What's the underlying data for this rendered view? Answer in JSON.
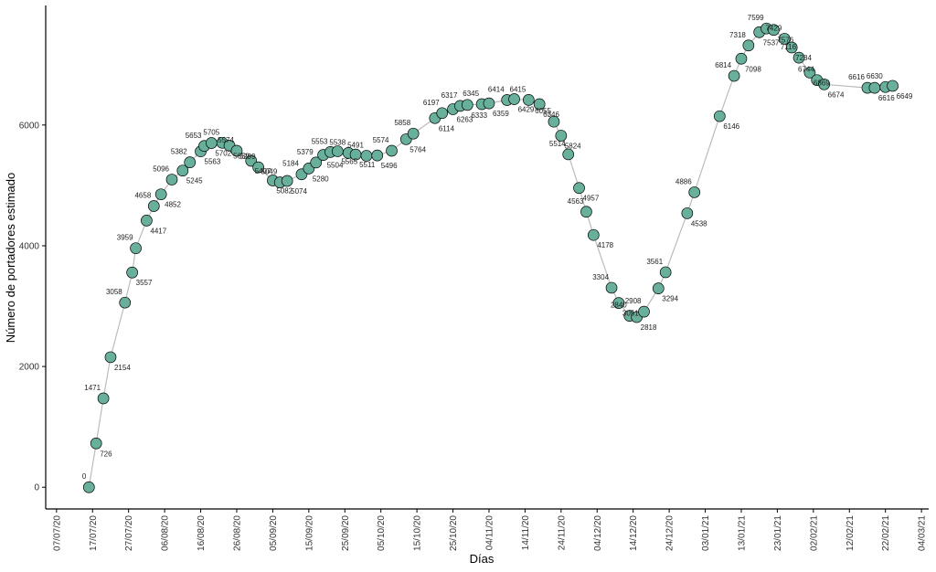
{
  "chart_data": {
    "type": "scatter",
    "xlabel": "Días",
    "ylabel": "Número de portadores estimado",
    "x": [
      "2020-07-16",
      "2020-07-18",
      "2020-07-20",
      "2020-07-22",
      "2020-07-26",
      "2020-07-28",
      "2020-07-29",
      "2020-08-01",
      "2020-08-03",
      "2020-08-05",
      "2020-08-08",
      "2020-08-11",
      "2020-08-13",
      "2020-08-16",
      "2020-08-17",
      "2020-08-19",
      "2020-08-22",
      "2020-08-24",
      "2020-08-26",
      "2020-08-30",
      "2020-09-01",
      "2020-09-05",
      "2020-09-07",
      "2020-09-09",
      "2020-09-13",
      "2020-09-15",
      "2020-09-17",
      "2020-09-19",
      "2020-09-21",
      "2020-09-23",
      "2020-09-26",
      "2020-09-28",
      "2020-10-01",
      "2020-10-04",
      "2020-10-08",
      "2020-10-12",
      "2020-10-14",
      "2020-10-20",
      "2020-10-22",
      "2020-10-25",
      "2020-10-27",
      "2020-10-29",
      "2020-11-02",
      "2020-11-04",
      "2020-11-09",
      "2020-11-11",
      "2020-11-15",
      "2020-11-18",
      "2020-11-22",
      "2020-11-24",
      "2020-11-26",
      "2020-11-29",
      "2020-12-01",
      "2020-12-03",
      "2020-12-08",
      "2020-12-10",
      "2020-12-13",
      "2020-12-15",
      "2020-12-17",
      "2020-12-21",
      "2020-12-23",
      "2020-12-29",
      "2020-12-31",
      "2021-01-07",
      "2021-01-11",
      "2021-01-13",
      "2021-01-15",
      "2021-01-18",
      "2021-01-20",
      "2021-01-22",
      "2021-01-25",
      "2021-01-27",
      "2021-01-29",
      "2021-02-01",
      "2021-02-03",
      "2021-02-05",
      "2021-02-17",
      "2021-02-19",
      "2021-02-22",
      "2021-02-24"
    ],
    "values": [
      0,
      726,
      1471,
      2154,
      3058,
      3557,
      3959,
      4417,
      4658,
      4852,
      5096,
      5245,
      5382,
      5563,
      5653,
      5702,
      5705,
      5659,
      5574,
      5407,
      5299,
      5082,
      5049,
      5074,
      5184,
      5280,
      5379,
      5504,
      5553,
      5565,
      5538,
      5511,
      5491,
      5496,
      5574,
      5764,
      5858,
      6114,
      6197,
      6263,
      6317,
      6333,
      6345,
      6359,
      6414,
      6429,
      6415,
      6346,
      6055,
      5824,
      5514,
      4957,
      4563,
      4178,
      3304,
      3051,
      2840,
      2818,
      2908,
      3294,
      3561,
      4538,
      4886,
      6146,
      6814,
      7098,
      7318,
      7537,
      7599,
      7576,
      7429,
      7284,
      7116,
      6869,
      6744,
      6674,
      6616,
      6616,
      6630,
      6649
    ],
    "color": "#69b09c",
    "line_color": "#bbbbbb",
    "xlim": [
      "2020-07-04",
      "2021-03-06"
    ],
    "xticks": [
      {
        "value": "2020-07-07",
        "label": "07/07/20"
      },
      {
        "value": "2020-07-17",
        "label": "17/07/20"
      },
      {
        "value": "2020-07-27",
        "label": "27/07/20"
      },
      {
        "value": "2020-08-06",
        "label": "06/08/20"
      },
      {
        "value": "2020-08-16",
        "label": "16/08/20"
      },
      {
        "value": "2020-08-26",
        "label": "26/08/20"
      },
      {
        "value": "2020-09-05",
        "label": "05/09/20"
      },
      {
        "value": "2020-09-15",
        "label": "15/09/20"
      },
      {
        "value": "2020-09-25",
        "label": "25/09/20"
      },
      {
        "value": "2020-10-05",
        "label": "05/10/20"
      },
      {
        "value": "2020-10-15",
        "label": "15/10/20"
      },
      {
        "value": "2020-10-25",
        "label": "25/10/20"
      },
      {
        "value": "2020-11-04",
        "label": "04/11/20"
      },
      {
        "value": "2020-11-14",
        "label": "14/11/20"
      },
      {
        "value": "2020-11-24",
        "label": "24/11/20"
      },
      {
        "value": "2020-12-04",
        "label": "04/12/20"
      },
      {
        "value": "2020-12-14",
        "label": "14/12/20"
      },
      {
        "value": "2020-12-24",
        "label": "24/12/20"
      },
      {
        "value": "2021-01-03",
        "label": "03/01/21"
      },
      {
        "value": "2021-01-13",
        "label": "13/01/21"
      },
      {
        "value": "2021-01-23",
        "label": "23/01/21"
      },
      {
        "value": "2021-02-02",
        "label": "02/02/21"
      },
      {
        "value": "2021-02-12",
        "label": "12/02/21"
      },
      {
        "value": "2021-02-22",
        "label": "22/02/21"
      },
      {
        "value": "2021-03-04",
        "label": "04/03/21"
      }
    ],
    "ylim": [
      -360,
      7950
    ],
    "yticks": [
      0,
      2000,
      4000,
      6000
    ],
    "grid": false
  }
}
